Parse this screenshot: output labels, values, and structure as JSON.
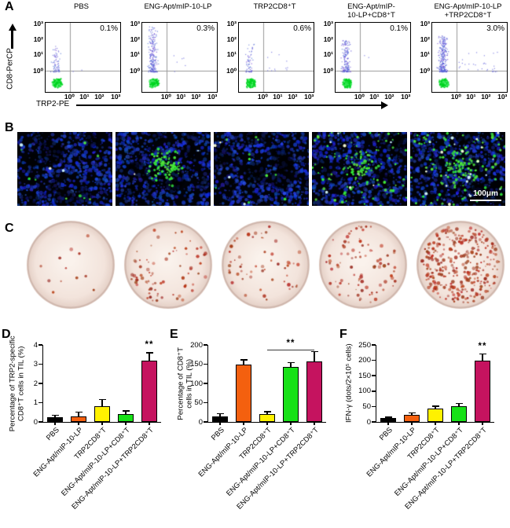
{
  "figure": {
    "panel_a": {
      "label": "A",
      "y_axis_label": "CD8-PerCP",
      "x_axis_label": "TRP2-PE",
      "y_ticks": [
        "10³",
        "10²",
        "10¹",
        "10⁰"
      ],
      "x_ticks": [
        "10⁰",
        "10¹",
        "10²",
        "10³"
      ],
      "plots": [
        {
          "title1": "PBS",
          "title2": "",
          "value": "0.1%",
          "blue_dots": 70,
          "rise": 34,
          "right_dots": 2,
          "right_spread": 18
        },
        {
          "title1": "ENG-Apt/mIP-10-LP",
          "title2": "",
          "value": "0.3%",
          "blue_dots": 230,
          "rise": 58,
          "right_dots": 6,
          "right_spread": 40
        },
        {
          "title1": "TRP2CD8⁺T",
          "title2": "",
          "value": "0.6%",
          "blue_dots": 60,
          "rise": 36,
          "right_dots": 12,
          "right_spread": 30
        },
        {
          "title1": "ENG-Apt/mIP-",
          "title2": "10-LP+CD8⁺T",
          "value": "0.1%",
          "blue_dots": 170,
          "rise": 40,
          "right_dots": 2,
          "right_spread": 18
        },
        {
          "title1": "ENG-Apt/mIP-10-LP",
          "title2": "+TRP2CD8⁺T",
          "value": "3.0%",
          "blue_dots": 280,
          "rise": 46,
          "right_dots": 30,
          "right_spread": 50
        }
      ]
    },
    "panel_b": {
      "label": "B",
      "scale_bar_text": "100μm",
      "images": [
        {
          "green_dots": 9,
          "bright_dots": 3,
          "cluster": 0
        },
        {
          "green_dots": 95,
          "bright_dots": 2,
          "cluster": 1
        },
        {
          "green_dots": 10,
          "bright_dots": 4,
          "cluster": 0
        },
        {
          "green_dots": 130,
          "bright_dots": 8,
          "cluster": 0.5
        },
        {
          "green_dots": 150,
          "bright_dots": 22,
          "cluster": 0.4
        }
      ]
    },
    "panel_c": {
      "label": "C",
      "wells": [
        {
          "dots": 12,
          "cluster": 0
        },
        {
          "dots": 75,
          "cluster": 1
        },
        {
          "dots": 55,
          "cluster": 0
        },
        {
          "dots": 85,
          "cluster": 0
        },
        {
          "dots": 310,
          "cluster": 0
        }
      ]
    }
  },
  "chart_data": [
    {
      "panel": "D",
      "type": "bar",
      "ylabel": "Percentage of TRP2-specific CD8⁺T cells in TIL (%)",
      "ylabel_lines": [
        "Percentage of TRP2-specific",
        "CD8⁺T cells in TIL (%)"
      ],
      "categories": [
        "PBS",
        "ENG-Apt/mIP-10-LP",
        "TRP2CD8⁺T",
        "ENG-Apt/mIP-10-LP+CD8⁺T",
        "ENG-Apt/mIP-10-LP+TRP2CD8⁺T"
      ],
      "values": [
        0.25,
        0.3,
        0.8,
        0.4,
        3.2
      ],
      "errors": [
        0.13,
        0.25,
        0.38,
        0.2,
        0.42
      ],
      "ylim": [
        0,
        4
      ],
      "yticks": [
        0,
        1,
        2,
        3,
        4
      ],
      "significance": {
        "type": "star",
        "bar": 4,
        "text": "**"
      }
    },
    {
      "panel": "E",
      "type": "bar",
      "ylabel": "Percentage of CD8⁺T cells in TIL (%)",
      "ylabel_lines": [
        "Percentage of CD8⁺T",
        "cells in TIL (%)"
      ],
      "categories": [
        "PBS",
        "ENG-Apt/mIP-10-LP",
        "TRP2CD8⁺T",
        "ENG-Apt/mIP-10-LP+CD8⁺T",
        "ENG-Apt/mIP-10-LP+TRP2CD8⁺T"
      ],
      "values": [
        15,
        148,
        20,
        142,
        158
      ],
      "errors": [
        8,
        15,
        8,
        14,
        26
      ],
      "ylim": [
        0,
        200
      ],
      "yticks": [
        0,
        50,
        100,
        150,
        200
      ],
      "significance": {
        "type": "bracket",
        "from": 2,
        "to": 4,
        "text": "**"
      }
    },
    {
      "panel": "F",
      "type": "bar",
      "ylabel": "IFN-γ (dots/2×10⁵ cells)",
      "ylabel_lines": [
        "IFN-γ (dots/2×10⁵ cells)"
      ],
      "categories": [
        "PBS",
        "ENG-Apt/mIP-10-LP",
        "TRP2CD8⁺T",
        "ENG-Apt/mIP-10-LP+CD8⁺T",
        "ENG-Apt/mIP-10-LP+TRP2CD8⁺T"
      ],
      "values": [
        13,
        24,
        44,
        50,
        200
      ],
      "errors": [
        4,
        7,
        9,
        11,
        23
      ],
      "ylim": [
        0,
        250
      ],
      "yticks": [
        0,
        50,
        100,
        150,
        200,
        250
      ],
      "significance": {
        "type": "star",
        "bar": 4,
        "text": "**"
      }
    }
  ],
  "colors": {
    "bar_colors": [
      "#000000",
      "#F4600F",
      "#FFF100",
      "#17E117",
      "#C5135F"
    ],
    "flow_blue": "#5050D7",
    "flow_green": "#00D420",
    "quadrant_line": "#999999",
    "elispot_dot": "#A8301E"
  }
}
